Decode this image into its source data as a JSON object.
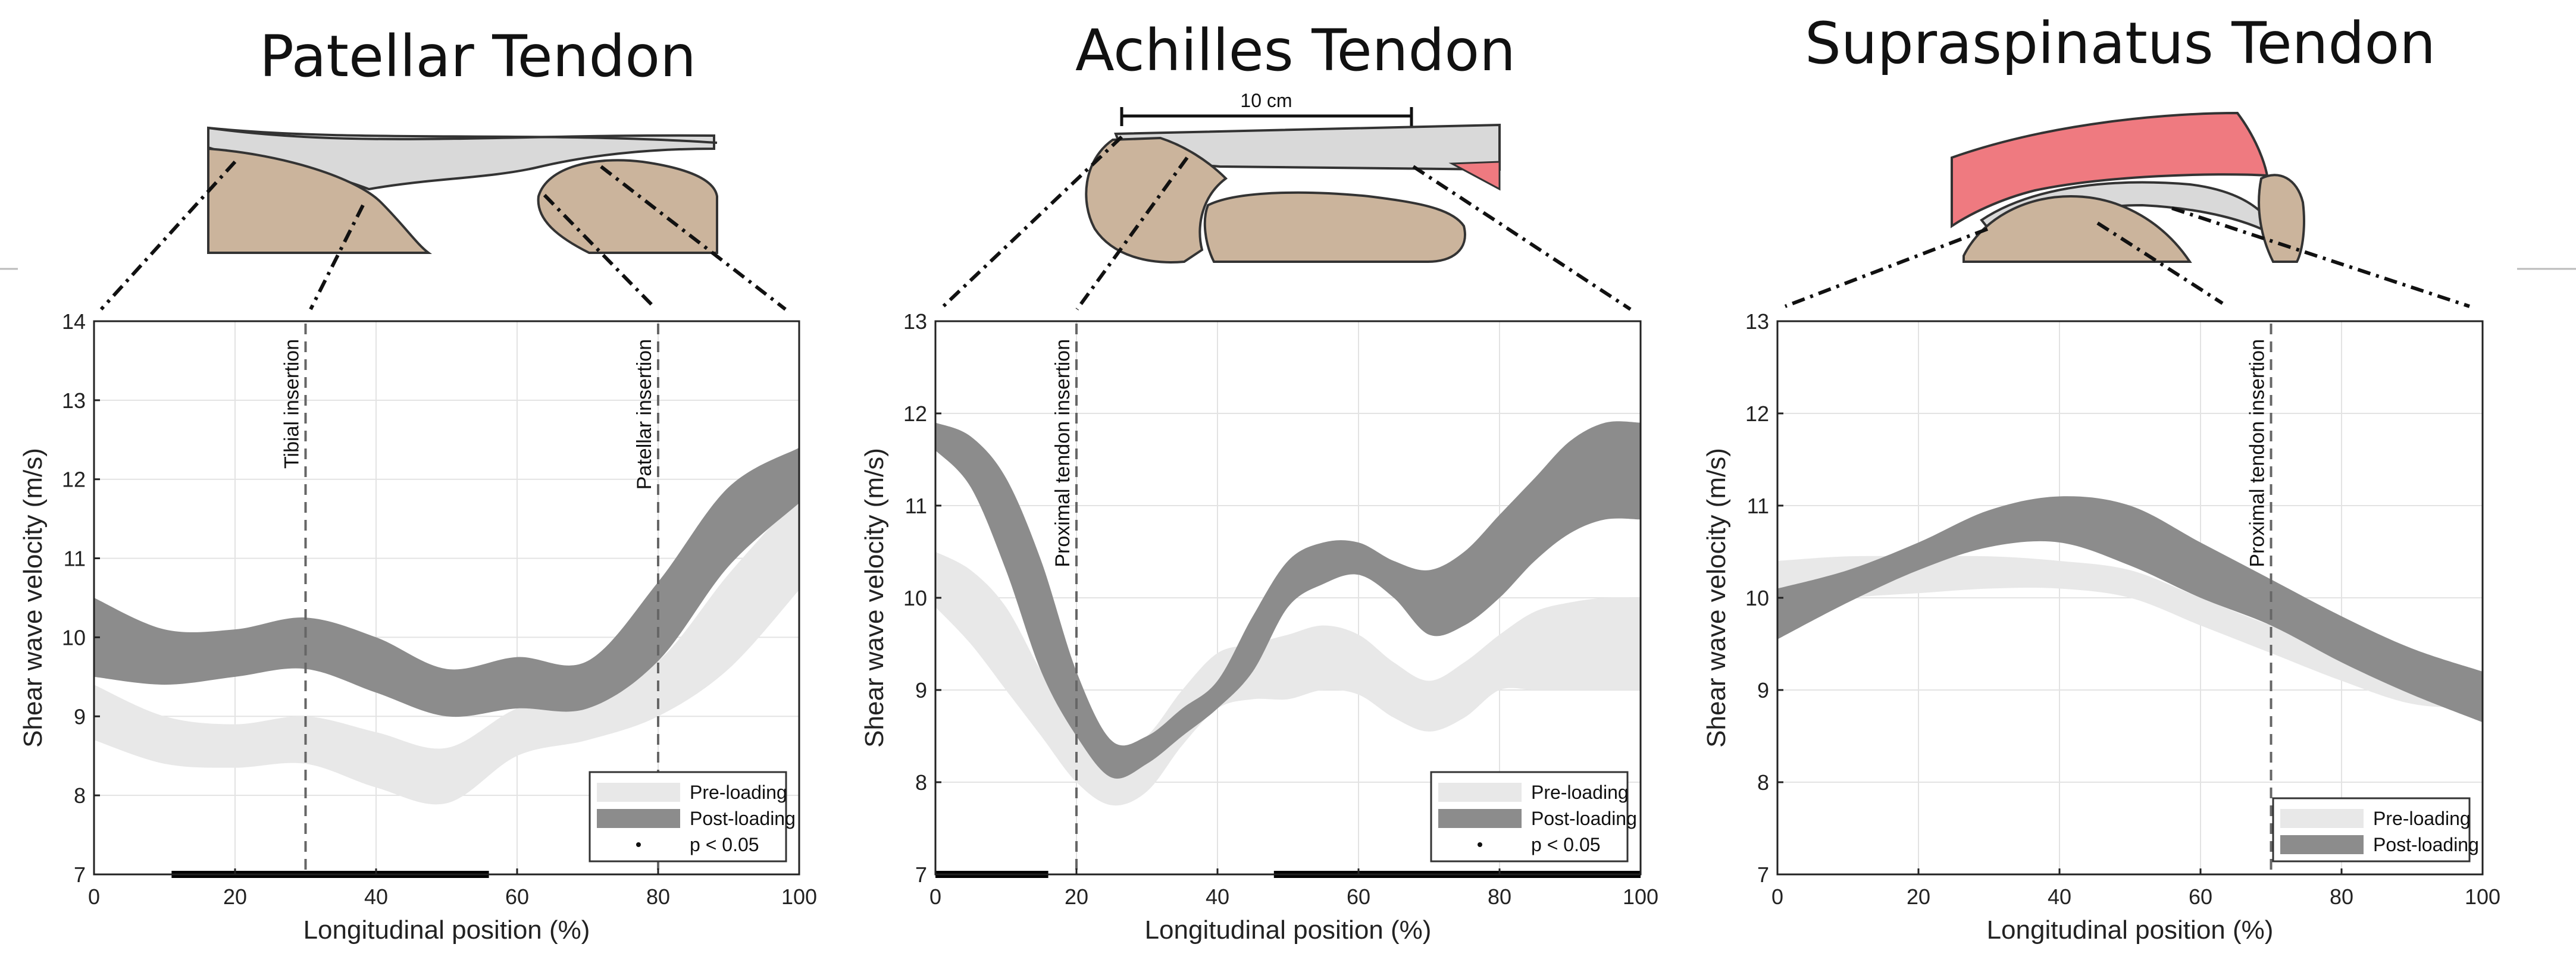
{
  "figure": {
    "colors": {
      "pre": "#e8e8e8",
      "post": "#8c8c8c",
      "tissue": "#c8b29a",
      "muscle": "#ef7a80",
      "tendon": "#d9d9d9"
    }
  },
  "chart_data": [
    {
      "type": "area",
      "title": "Patellar Tendon",
      "xlabel": "Longitudinal position (%)",
      "ylabel": "Shear wave velocity (m/s)",
      "xlim": [
        0,
        100
      ],
      "ylim": [
        7,
        14
      ],
      "xticks": [
        "0",
        "20",
        "40",
        "60",
        "80",
        "100"
      ],
      "yticks": [
        "7",
        "8",
        "9",
        "10",
        "11",
        "12",
        "13",
        "14"
      ],
      "grid": true,
      "legend_position": "bottom-right",
      "legend": [
        "Pre-loading",
        "Post-loading",
        "p < 0.05"
      ],
      "x": [
        0,
        10,
        20,
        30,
        40,
        50,
        60,
        70,
        80,
        90,
        100
      ],
      "series": [
        {
          "name": "Pre-loading",
          "lower": [
            8.7,
            8.4,
            8.35,
            8.4,
            8.1,
            7.9,
            8.5,
            8.7,
            9.0,
            9.6,
            10.6
          ],
          "upper": [
            9.4,
            9.0,
            8.9,
            9.0,
            8.8,
            8.6,
            9.1,
            9.3,
            9.7,
            10.8,
            11.8
          ]
        },
        {
          "name": "Post-loading",
          "lower": [
            9.5,
            9.4,
            9.5,
            9.6,
            9.3,
            9.0,
            9.1,
            9.1,
            9.7,
            10.9,
            11.7
          ],
          "upper": [
            10.5,
            10.1,
            10.1,
            10.25,
            10.0,
            9.6,
            9.75,
            9.7,
            10.7,
            11.9,
            12.4
          ]
        }
      ],
      "vlines": [
        {
          "x": 30,
          "label": "Tibial insertion"
        },
        {
          "x": 80,
          "label": "Patellar insertion"
        }
      ],
      "significance": [
        [
          11,
          56
        ]
      ]
    },
    {
      "type": "area",
      "title": "Achilles Tendon",
      "xlabel": "Longitudinal position (%)",
      "ylabel": "Shear wave velocity (m/s)",
      "xlim": [
        0,
        100
      ],
      "ylim": [
        7,
        13
      ],
      "xticks": [
        "0",
        "20",
        "40",
        "60",
        "80",
        "100"
      ],
      "yticks": [
        "7",
        "8",
        "9",
        "10",
        "11",
        "12",
        "13"
      ],
      "grid": true,
      "legend_position": "bottom-right",
      "legend": [
        "Pre-loading",
        "Post-loading",
        "p < 0.05"
      ],
      "scale_bar": "10 cm",
      "x": [
        0,
        5,
        10,
        15,
        20,
        25,
        30,
        35,
        40,
        45,
        50,
        55,
        60,
        65,
        70,
        75,
        80,
        85,
        90,
        95,
        100
      ],
      "series": [
        {
          "name": "Pre-loading",
          "lower": [
            9.9,
            9.5,
            9.0,
            8.5,
            8.0,
            7.75,
            7.9,
            8.4,
            8.8,
            8.9,
            8.9,
            9.0,
            8.95,
            8.7,
            8.55,
            8.7,
            9.0,
            9.0,
            9.0,
            9.0,
            9.0
          ],
          "upper": [
            10.5,
            10.3,
            9.9,
            9.2,
            8.6,
            8.3,
            8.5,
            9.0,
            9.4,
            9.5,
            9.6,
            9.7,
            9.6,
            9.3,
            9.1,
            9.3,
            9.6,
            9.85,
            9.95,
            10.0,
            10.0
          ]
        },
        {
          "name": "Post-loading",
          "lower": [
            11.6,
            11.2,
            10.3,
            9.2,
            8.5,
            8.05,
            8.2,
            8.5,
            8.8,
            9.2,
            9.9,
            10.15,
            10.25,
            10.0,
            9.6,
            9.7,
            10.0,
            10.4,
            10.7,
            10.85,
            10.85
          ],
          "upper": [
            11.9,
            11.75,
            11.3,
            10.4,
            9.2,
            8.45,
            8.5,
            8.8,
            9.1,
            9.8,
            10.4,
            10.6,
            10.6,
            10.4,
            10.3,
            10.5,
            10.9,
            11.3,
            11.7,
            11.9,
            11.9
          ]
        }
      ],
      "vlines": [
        {
          "x": 20,
          "label": "Proximal tendon insertion"
        }
      ],
      "significance": [
        [
          0,
          16
        ],
        [
          48,
          100
        ]
      ]
    },
    {
      "type": "area",
      "title": "Supraspinatus Tendon",
      "xlabel": "Longitudinal position (%)",
      "ylabel": "Shear wave velocity (m/s)",
      "xlim": [
        0,
        100
      ],
      "ylim": [
        7,
        13
      ],
      "xticks": [
        "0",
        "20",
        "40",
        "60",
        "80",
        "100"
      ],
      "yticks": [
        "7",
        "8",
        "9",
        "10",
        "11",
        "12",
        "13"
      ],
      "grid": true,
      "legend_position": "bottom-right",
      "legend": [
        "Pre-loading",
        "Post-loading"
      ],
      "x": [
        0,
        10,
        20,
        30,
        40,
        50,
        60,
        70,
        80,
        90,
        100
      ],
      "series": [
        {
          "name": "Pre-loading",
          "lower": [
            9.9,
            10.0,
            10.05,
            10.1,
            10.1,
            10.0,
            9.7,
            9.4,
            9.1,
            8.85,
            8.8
          ],
          "upper": [
            10.4,
            10.45,
            10.45,
            10.45,
            10.4,
            10.3,
            10.0,
            9.7,
            9.45,
            9.25,
            9.2
          ]
        },
        {
          "name": "Post-loading",
          "lower": [
            9.55,
            9.95,
            10.3,
            10.55,
            10.6,
            10.35,
            10.0,
            9.7,
            9.3,
            8.95,
            8.65
          ],
          "upper": [
            10.1,
            10.3,
            10.6,
            10.95,
            11.1,
            11.0,
            10.6,
            10.2,
            9.8,
            9.45,
            9.2
          ]
        }
      ],
      "vlines": [
        {
          "x": 70,
          "label": "Proximal tendon insertion"
        }
      ],
      "significance": []
    }
  ]
}
